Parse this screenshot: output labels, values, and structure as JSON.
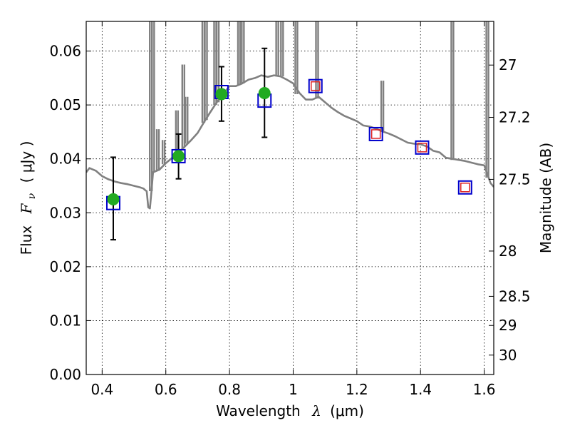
{
  "chart_data": {
    "type": "scatter",
    "title": "",
    "xlabel_text": "Wavelength",
    "xlabel_symbol": "λ",
    "xlabel_unit": "(μm)",
    "ylabel_text": "Flux",
    "ylabel_symbol": "F",
    "ylabel_subscript": "ν",
    "ylabel_unit": "( μJy )",
    "y2label": "Magnitude (AB)",
    "xlim": [
      0.35,
      1.63
    ],
    "ylim": [
      0.0,
      0.0655
    ],
    "grid": true,
    "x_ticks": [
      0.4,
      0.6,
      0.8,
      1.0,
      1.2,
      1.4,
      1.6
    ],
    "x_tick_labels": [
      "0.4",
      "0.6",
      "0.8",
      "1",
      "1.2",
      "1.4",
      "1.6"
    ],
    "y_ticks": [
      0.0,
      0.01,
      0.02,
      0.03,
      0.04,
      0.05,
      0.06
    ],
    "y_tick_labels": [
      "0.00",
      "0.01",
      "0.02",
      "0.03",
      "0.04",
      "0.05",
      "0.06"
    ],
    "y2_ticks": [
      {
        "flux": 0.0574,
        "label": "27"
      },
      {
        "flux": 0.0477,
        "label": "27.2"
      },
      {
        "flux": 0.0362,
        "label": "27.5"
      },
      {
        "flux": 0.0229,
        "label": "28"
      },
      {
        "flux": 0.0145,
        "label": "28.5"
      },
      {
        "flux": 0.0091,
        "label": "29"
      },
      {
        "flux": 0.0036,
        "label": "30"
      }
    ],
    "colors": {
      "sed": "#808080",
      "model_box": "#0000cc",
      "observed": "#22aa22",
      "ir_marker": "#dd2222",
      "errorbar": "#000000"
    },
    "series": [
      {
        "kind": "model_sed_line",
        "x": [
          0.35,
          0.36,
          0.38,
          0.4,
          0.42,
          0.44,
          0.46,
          0.48,
          0.5,
          0.52,
          0.53,
          0.535,
          0.54,
          0.545,
          0.55,
          0.555,
          0.56,
          0.58,
          0.6,
          0.62,
          0.64,
          0.66,
          0.68,
          0.7,
          0.72,
          0.74,
          0.76,
          0.78,
          0.8,
          0.82,
          0.84,
          0.86,
          0.88,
          0.9,
          0.92,
          0.94,
          0.96,
          0.98,
          1.0,
          1.02,
          1.04,
          1.06,
          1.08,
          1.1,
          1.12,
          1.14,
          1.16,
          1.18,
          1.2,
          1.22,
          1.24,
          1.26,
          1.28,
          1.3,
          1.32,
          1.34,
          1.36,
          1.38,
          1.4,
          1.42,
          1.44,
          1.46,
          1.48,
          1.5,
          1.52,
          1.54,
          1.56,
          1.58,
          1.6,
          1.62,
          1.63
        ],
        "y": [
          0.0375,
          0.0383,
          0.0378,
          0.0368,
          0.0362,
          0.0358,
          0.0355,
          0.0353,
          0.035,
          0.0347,
          0.0345,
          0.0342,
          0.034,
          0.031,
          0.0308,
          0.034,
          0.0375,
          0.038,
          0.0392,
          0.0402,
          0.0412,
          0.0423,
          0.0435,
          0.0448,
          0.0468,
          0.0487,
          0.0505,
          0.052,
          0.0535,
          0.0535,
          0.054,
          0.0547,
          0.055,
          0.0555,
          0.0552,
          0.0555,
          0.0553,
          0.0547,
          0.054,
          0.0522,
          0.051,
          0.051,
          0.0515,
          0.0505,
          0.0495,
          0.0487,
          0.048,
          0.0475,
          0.047,
          0.0462,
          0.046,
          0.0456,
          0.0451,
          0.0447,
          0.0442,
          0.0436,
          0.043,
          0.0428,
          0.0427,
          0.0423,
          0.0415,
          0.0412,
          0.0402,
          0.04,
          0.0398,
          0.0396,
          0.0393,
          0.039,
          0.0388,
          0.0355,
          0.0348
        ]
      },
      {
        "kind": "model_sed_emission_spikes",
        "lines": [
          {
            "x": 0.553,
            "base": 0.034,
            "peak": 0.0655
          },
          {
            "x": 0.56,
            "base": 0.0375,
            "peak": 0.0655
          },
          {
            "x": 0.575,
            "base": 0.0378,
            "peak": 0.0455
          },
          {
            "x": 0.593,
            "base": 0.039,
            "peak": 0.0435
          },
          {
            "x": 0.635,
            "base": 0.0407,
            "peak": 0.049
          },
          {
            "x": 0.655,
            "base": 0.042,
            "peak": 0.0575
          },
          {
            "x": 0.665,
            "base": 0.0428,
            "peak": 0.0515
          },
          {
            "x": 0.718,
            "base": 0.0467,
            "peak": 0.0655
          },
          {
            "x": 0.726,
            "base": 0.0472,
            "peak": 0.0655
          },
          {
            "x": 0.755,
            "base": 0.05,
            "peak": 0.0655
          },
          {
            "x": 0.763,
            "base": 0.0505,
            "peak": 0.0655
          },
          {
            "x": 0.83,
            "base": 0.0537,
            "peak": 0.0655
          },
          {
            "x": 0.842,
            "base": 0.054,
            "peak": 0.0655
          },
          {
            "x": 0.95,
            "base": 0.0553,
            "peak": 0.0655
          },
          {
            "x": 0.965,
            "base": 0.0553,
            "peak": 0.0655
          },
          {
            "x": 1.01,
            "base": 0.052,
            "peak": 0.0655
          },
          {
            "x": 1.075,
            "base": 0.0512,
            "peak": 0.0655
          },
          {
            "x": 1.28,
            "base": 0.0451,
            "peak": 0.0545
          },
          {
            "x": 1.5,
            "base": 0.0398,
            "peak": 0.0655
          },
          {
            "x": 1.61,
            "base": 0.0365,
            "peak": 0.0655
          }
        ]
      },
      {
        "kind": "model_band_flux_squares",
        "points": [
          {
            "x": 0.435,
            "y": 0.0318
          },
          {
            "x": 0.64,
            "y": 0.0405
          },
          {
            "x": 0.775,
            "y": 0.0524
          },
          {
            "x": 0.91,
            "y": 0.0508
          },
          {
            "x": 1.07,
            "y": 0.0535
          },
          {
            "x": 1.26,
            "y": 0.0446
          },
          {
            "x": 1.405,
            "y": 0.0421
          },
          {
            "x": 1.54,
            "y": 0.0347
          }
        ]
      },
      {
        "kind": "observed_flux",
        "points": [
          {
            "x": 0.435,
            "y": 0.0325,
            "yerr_low": 0.025,
            "yerr_high": 0.0403
          },
          {
            "x": 0.64,
            "y": 0.0405,
            "yerr_low": 0.0363,
            "yerr_high": 0.0446
          },
          {
            "x": 0.775,
            "y": 0.052,
            "yerr_low": 0.047,
            "yerr_high": 0.0571
          },
          {
            "x": 0.91,
            "y": 0.0522,
            "yerr_low": 0.044,
            "yerr_high": 0.0605
          }
        ]
      },
      {
        "kind": "ir_band_markers",
        "points": [
          {
            "x": 1.07,
            "y": 0.0535
          },
          {
            "x": 1.26,
            "y": 0.0446
          },
          {
            "x": 1.405,
            "y": 0.0421
          },
          {
            "x": 1.54,
            "y": 0.0347
          }
        ]
      }
    ]
  }
}
